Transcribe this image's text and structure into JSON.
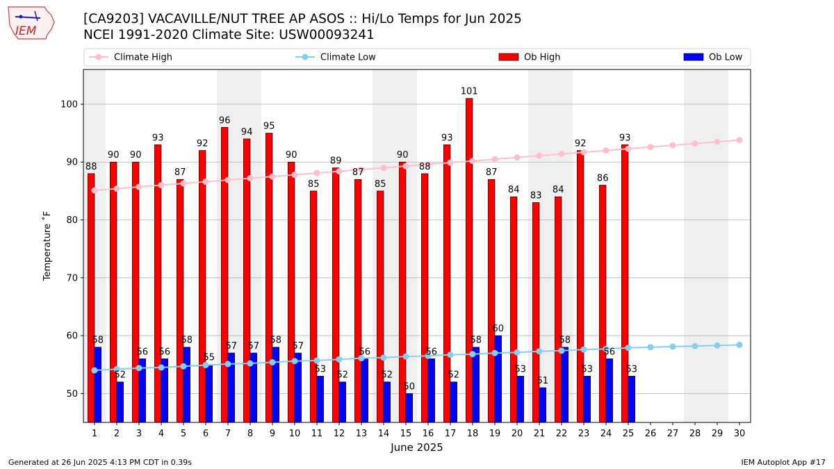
{
  "header": {
    "title_line1": "[CA9203] VACAVILLE/NUT TREE AP ASOS :: Hi/Lo Temps for Jun 2025",
    "title_line2": "NCEI 1991-2020 Climate Site: USW00093241",
    "logo_text": "IEM"
  },
  "footer": {
    "generated": "Generated at 26 Jun 2025 4:13 PM CDT in 0.39s",
    "app": "IEM Autoplot App #17"
  },
  "chart_data": {
    "type": "bar",
    "xlabel": "June 2025",
    "ylabel": "Temperature ˚F",
    "ylim": [
      45,
      106
    ],
    "xlim": [
      0.5,
      30.5
    ],
    "yticks": [
      50,
      60,
      70,
      80,
      90,
      100
    ],
    "grid": "horizontal",
    "legend_position": "top",
    "weekend_shading_days": [
      1,
      7,
      8,
      14,
      15,
      21,
      22,
      28,
      29
    ],
    "days": [
      1,
      2,
      3,
      4,
      5,
      6,
      7,
      8,
      9,
      10,
      11,
      12,
      13,
      14,
      15,
      16,
      17,
      18,
      19,
      20,
      21,
      22,
      23,
      24,
      25,
      26,
      27,
      28,
      29,
      30
    ],
    "series": [
      {
        "name": "Climate High",
        "kind": "line",
        "color": "#FFC0CB",
        "values": [
          85.1,
          85.4,
          85.7,
          86.0,
          86.3,
          86.6,
          86.9,
          87.2,
          87.5,
          87.8,
          88.1,
          88.4,
          88.7,
          89.0,
          89.3,
          89.6,
          89.9,
          90.2,
          90.5,
          90.8,
          91.1,
          91.4,
          91.7,
          92.0,
          92.3,
          92.6,
          92.9,
          93.2,
          93.5,
          93.8
        ]
      },
      {
        "name": "Climate Low",
        "kind": "line",
        "color": "#87CEEB",
        "values": [
          54.0,
          54.2,
          54.4,
          54.5,
          54.7,
          54.9,
          55.1,
          55.2,
          55.4,
          55.6,
          55.7,
          55.9,
          56.1,
          56.2,
          56.4,
          56.5,
          56.7,
          56.8,
          57.0,
          57.1,
          57.3,
          57.4,
          57.6,
          57.7,
          57.9,
          58.0,
          58.1,
          58.2,
          58.3,
          58.4
        ]
      },
      {
        "name": "Ob High",
        "kind": "bar",
        "color": "#FF0000",
        "values": [
          88,
          90,
          90,
          93,
          87,
          92,
          96,
          94,
          95,
          90,
          85,
          89,
          87,
          85,
          90,
          88,
          93,
          101,
          87,
          84,
          83,
          84,
          92,
          86,
          93
        ]
      },
      {
        "name": "Ob Low",
        "kind": "bar",
        "color": "#0000FF",
        "values": [
          58,
          52,
          56,
          56,
          58,
          55,
          57,
          57,
          58,
          57,
          53,
          52,
          56,
          52,
          50,
          56,
          52,
          58,
          60,
          53,
          51,
          58,
          53,
          56,
          53
        ]
      }
    ]
  }
}
